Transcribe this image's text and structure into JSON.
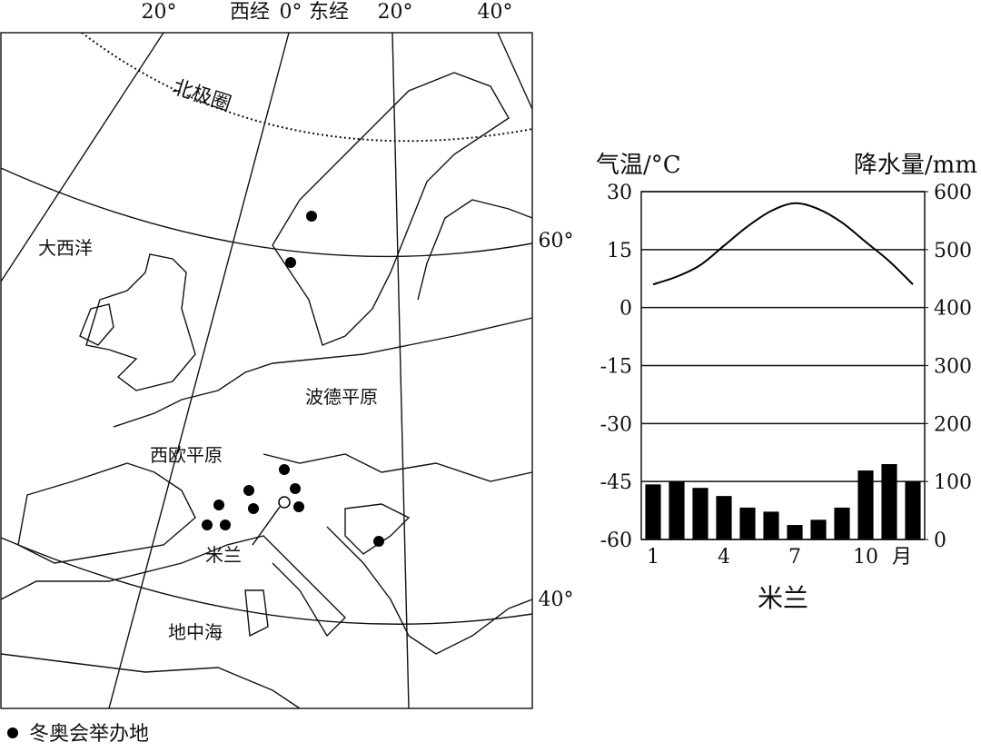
{
  "map": {
    "labels": [
      "20°",
      "西经",
      "0°",
      "东经",
      "20°",
      "40°",
      "北极圈",
      "60°",
      "40°",
      "大西洋",
      "波德平原",
      "西欧平原",
      "米兰",
      "地中海"
    ],
    "legend": "冬奥会举办地"
  },
  "chart_data": {
    "type": "climate",
    "title": "米兰",
    "y_label": "气温/°C",
    "y2_label": "降水量/mm",
    "x_unit": "月",
    "categories": [
      "1",
      null,
      null,
      "4",
      null,
      null,
      "7",
      null,
      null,
      "10",
      null,
      null
    ],
    "series": [
      {
        "name": "气温",
        "type": "line",
        "color": "#000000",
        "values": [
          6,
          8,
          11,
          16,
          21,
          25,
          27,
          25.5,
          22,
          17,
          12,
          6
        ]
      },
      {
        "name": "降水量",
        "type": "bar",
        "axis": "y2",
        "color": "#000000",
        "values": [
          95,
          100,
          89,
          75,
          55,
          48,
          25,
          34,
          55,
          119,
          130,
          100
        ]
      }
    ],
    "ylim": [
      -60,
      30
    ],
    "yticks": [
      -60,
      -45,
      -30,
      -15,
      0,
      15,
      30
    ],
    "y2lim": [
      0,
      600
    ],
    "y2ticks": [
      0,
      100,
      200,
      300,
      400,
      500,
      600
    ],
    "grid": true
  }
}
